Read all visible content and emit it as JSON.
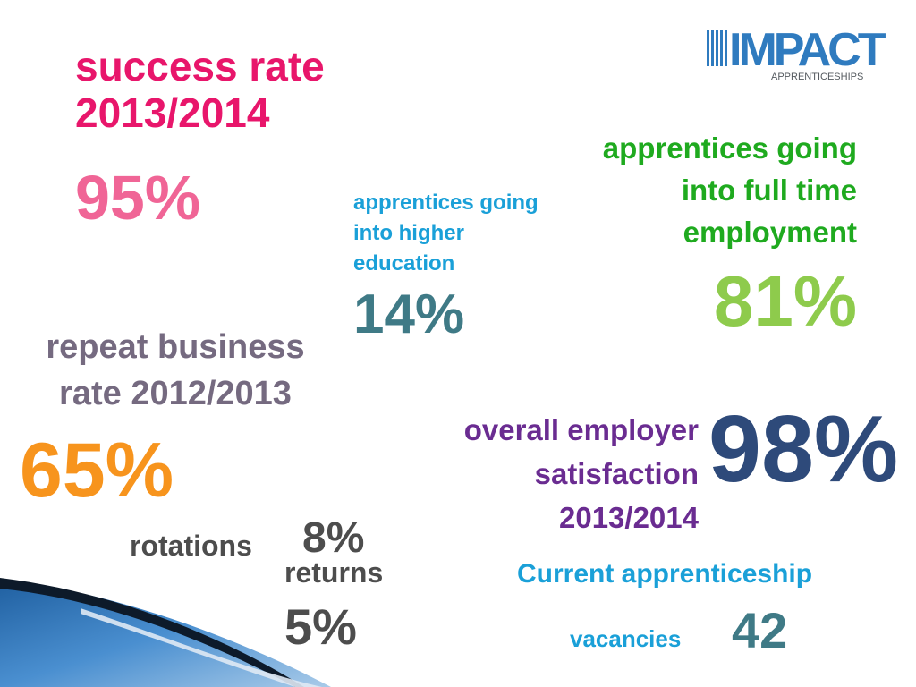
{
  "logo": {
    "mark": "IMPACT",
    "subtitle": "APPRENTICESHIPS"
  },
  "success": {
    "label_line1": "success rate",
    "label_line2": "2013/2014",
    "value": "95%"
  },
  "higher_education": {
    "label_line1": "apprentices going",
    "label_line2": "into higher",
    "label_line3": "education",
    "value": "14%"
  },
  "full_time": {
    "label_line1": "apprentices going",
    "label_line2": "into full time",
    "label_line3": "employment",
    "value": "81%"
  },
  "repeat_business": {
    "label_line1": "repeat business",
    "label_line2": "rate 2012/2013",
    "value": "65%"
  },
  "employer_satisfaction": {
    "label_line1": "overall employer",
    "label_line2": "satisfaction",
    "label_line3": "2013/2014",
    "value": "98%"
  },
  "rotations": {
    "label": "rotations",
    "value": "8%"
  },
  "returns": {
    "label": "returns",
    "value": "5%"
  },
  "vacancies": {
    "label_line1": "Current apprenticeship",
    "label_line2": "vacancies",
    "value": "42"
  },
  "colors": {
    "success": "#e8166b",
    "success_value": "#f06596",
    "higher_ed": "#1aa0d8",
    "teal_value": "#3f7a86",
    "full_time": "#1faa1f",
    "full_time_value": "#8ecb4c",
    "repeat": "#756a80",
    "repeat_value": "#f7941d",
    "employer": "#6a2c91",
    "employer_value": "#2e4a7a",
    "logo": "#2f7bbf"
  }
}
